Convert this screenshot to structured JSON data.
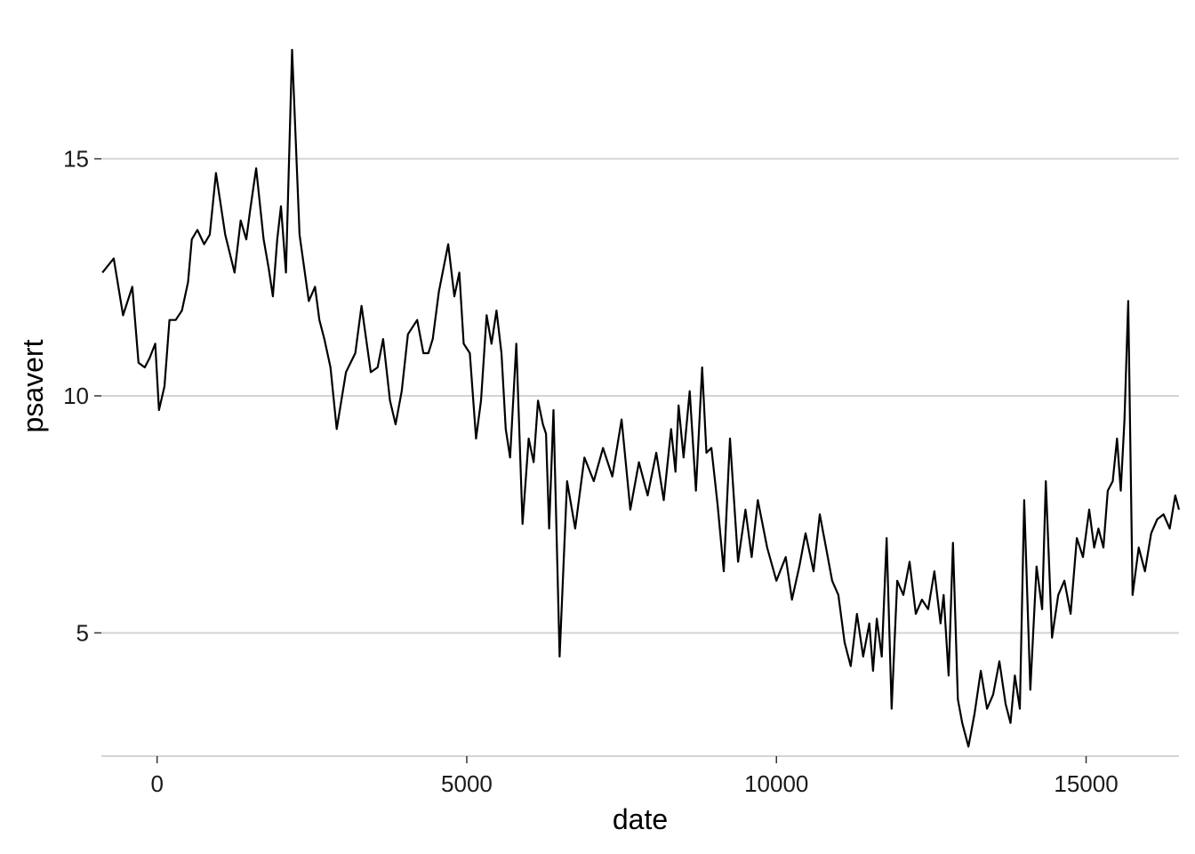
{
  "chart_data": {
    "type": "line",
    "xlabel": "date",
    "ylabel": "psavert",
    "xlim": [
      -900,
      16500
    ],
    "ylim": [
      2.4,
      17.6
    ],
    "x_ticks": [
      0,
      5000,
      10000,
      15000
    ],
    "x_tick_labels": [
      "0",
      "5000",
      "10000",
      "15000"
    ],
    "y_ticks": [
      5,
      10,
      15
    ],
    "y_tick_labels": [
      "5",
      "10",
      "15"
    ],
    "grid": "horizontal-major",
    "legend": "none",
    "colors": {
      "line": "#000000",
      "grid": "#d4d4d4"
    },
    "series": [
      {
        "x": [
          -883,
          -700,
          -550,
          -400,
          -300,
          -200,
          -120,
          -30,
          30,
          120,
          200,
          300,
          400,
          500,
          560,
          650,
          760,
          850,
          950,
          1100,
          1250,
          1350,
          1440,
          1500,
          1600,
          1720,
          1800,
          1870,
          1940,
          2000,
          2080,
          2180,
          2300,
          2450,
          2550,
          2620,
          2700,
          2800,
          2900,
          3050,
          3200,
          3300,
          3450,
          3560,
          3650,
          3760,
          3850,
          3950,
          4050,
          4200,
          4300,
          4380,
          4450,
          4550,
          4700,
          4800,
          4880,
          4950,
          5050,
          5150,
          5230,
          5320,
          5400,
          5480,
          5560,
          5630,
          5700,
          5800,
          5900,
          6000,
          6080,
          6150,
          6230,
          6280,
          6330,
          6400,
          6500,
          6620,
          6750,
          6900,
          7050,
          7200,
          7350,
          7500,
          7640,
          7780,
          7920,
          8060,
          8180,
          8300,
          8370,
          8420,
          8500,
          8600,
          8700,
          8800,
          8870,
          8950,
          9050,
          9150,
          9250,
          9380,
          9500,
          9600,
          9700,
          9850,
          10000,
          10150,
          10250,
          10370,
          10470,
          10600,
          10700,
          10800,
          10900,
          11000,
          11100,
          11200,
          11300,
          11400,
          11500,
          11560,
          11620,
          11700,
          11780,
          11860,
          11950,
          12050,
          12150,
          12250,
          12350,
          12450,
          12550,
          12650,
          12700,
          12780,
          12850,
          12930,
          13000,
          13100,
          13200,
          13300,
          13400,
          13500,
          13600,
          13700,
          13780,
          13850,
          13930,
          14000,
          14100,
          14200,
          14290,
          14350,
          14450,
          14550,
          14650,
          14750,
          14850,
          14950,
          15050,
          15130,
          15200,
          15280,
          15350,
          15430,
          15500,
          15560,
          15620,
          15680,
          15750,
          15850,
          15950,
          16050,
          16150,
          16250,
          16350,
          16440,
          16500
        ],
        "values": [
          12.6,
          12.9,
          11.7,
          12.3,
          10.7,
          10.6,
          10.8,
          11.1,
          9.7,
          10.2,
          11.6,
          11.6,
          11.8,
          12.4,
          13.3,
          13.5,
          13.2,
          13.4,
          14.7,
          13.4,
          12.6,
          13.7,
          13.3,
          13.9,
          14.8,
          13.3,
          12.7,
          12.1,
          13.3,
          14.0,
          12.6,
          17.3,
          13.4,
          12.0,
          12.3,
          11.6,
          11.2,
          10.6,
          9.3,
          10.5,
          10.9,
          11.9,
          10.5,
          10.6,
          11.2,
          9.9,
          9.4,
          10.1,
          11.3,
          11.6,
          10.9,
          10.9,
          11.2,
          12.2,
          13.2,
          12.1,
          12.6,
          11.1,
          10.9,
          9.1,
          9.9,
          11.7,
          11.1,
          11.8,
          10.9,
          9.3,
          8.7,
          11.1,
          7.3,
          9.1,
          8.6,
          9.9,
          9.4,
          9.2,
          7.2,
          9.7,
          4.5,
          8.2,
          7.2,
          8.7,
          8.2,
          8.9,
          8.3,
          9.5,
          7.6,
          8.6,
          7.9,
          8.8,
          7.8,
          9.3,
          8.4,
          9.8,
          8.7,
          10.1,
          8.0,
          10.6,
          8.8,
          8.9,
          7.7,
          6.3,
          9.1,
          6.5,
          7.6,
          6.6,
          7.8,
          6.8,
          6.1,
          6.6,
          5.7,
          6.4,
          7.1,
          6.3,
          7.5,
          6.8,
          6.1,
          5.8,
          4.8,
          4.3,
          5.4,
          4.5,
          5.2,
          4.2,
          5.3,
          4.5,
          7.0,
          3.4,
          6.1,
          5.8,
          6.5,
          5.4,
          5.7,
          5.5,
          6.3,
          5.2,
          5.8,
          4.1,
          6.9,
          3.6,
          3.1,
          2.6,
          3.3,
          4.2,
          3.4,
          3.7,
          4.4,
          3.5,
          3.1,
          4.1,
          3.4,
          7.8,
          3.8,
          6.4,
          5.5,
          8.2,
          4.9,
          5.8,
          6.1,
          5.4,
          7.0,
          6.6,
          7.6,
          6.8,
          7.2,
          6.8,
          8.0,
          8.2,
          9.1,
          8.0,
          9.5,
          12.0,
          5.8,
          6.8,
          6.3,
          7.1,
          7.4,
          7.5,
          7.2,
          7.9,
          7.6
        ]
      }
    ]
  }
}
